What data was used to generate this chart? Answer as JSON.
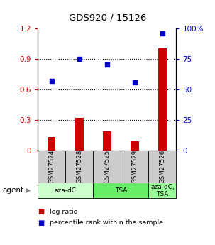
{
  "title": "GDS920 / 15126",
  "samples": [
    "GSM27524",
    "GSM27528",
    "GSM27525",
    "GSM27529",
    "GSM27526"
  ],
  "log_ratio": [
    0.13,
    0.32,
    0.19,
    0.09,
    1.0
  ],
  "percentile_rank": [
    57,
    75,
    70,
    56,
    96
  ],
  "bar_color": "#cc0000",
  "scatter_color": "#0000cc",
  "ylim_left": [
    0,
    1.2
  ],
  "ylim_right": [
    0,
    100
  ],
  "yticks_left": [
    0,
    0.3,
    0.6,
    0.9,
    1.2
  ],
  "yticks_right": [
    0,
    25,
    50,
    75,
    100
  ],
  "ytick_labels_left": [
    "0",
    "0.3",
    "0.6",
    "0.9",
    "1.2"
  ],
  "ytick_labels_right": [
    "0",
    "25",
    "50",
    "75",
    "100%"
  ],
  "agent_groups": [
    {
      "label": "aza-dC",
      "span": [
        0,
        2
      ],
      "color": "#ccffcc"
    },
    {
      "label": "TSA",
      "span": [
        2,
        4
      ],
      "color": "#66ee66"
    },
    {
      "label": "aza-dC,\nTSA",
      "span": [
        4,
        5
      ],
      "color": "#99ff99"
    }
  ],
  "agent_label": "agent",
  "legend_bar_label": "log ratio",
  "legend_scatter_label": "percentile rank within the sample",
  "tick_color_left": "#cc0000",
  "tick_color_right": "#0000cc",
  "sample_box_color": "#cccccc",
  "bar_width": 0.3
}
